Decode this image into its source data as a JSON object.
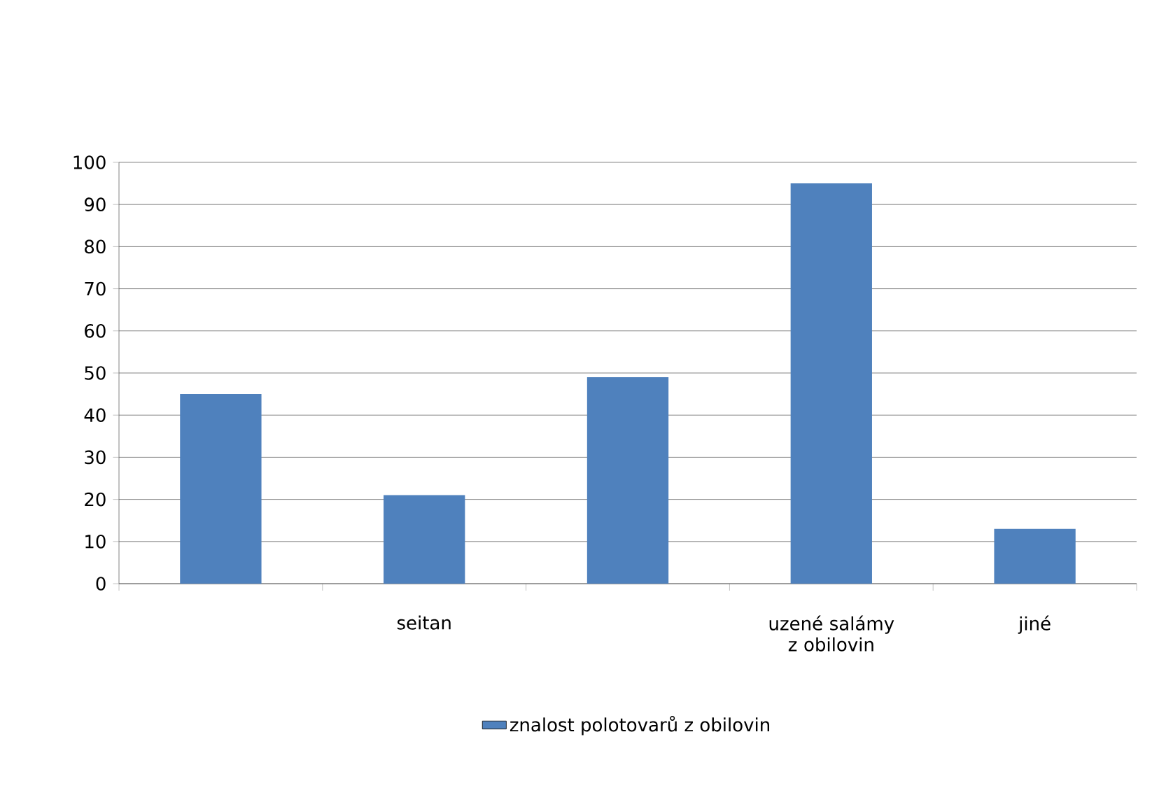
{
  "chart_data": {
    "type": "bar",
    "categories": [
      null,
      "seitan",
      null,
      "uzené salámy z obilovin",
      "jiné"
    ],
    "series": [
      {
        "name": "znalost polotovarů z obilovin",
        "color": "#4f81bd",
        "values": [
          45,
          21,
          49,
          95,
          13
        ]
      }
    ],
    "ylim": [
      0,
      100
    ],
    "yticks": [
      0,
      10,
      20,
      30,
      40,
      50,
      60,
      70,
      80,
      90,
      100
    ],
    "grid": "y",
    "legend": "bottom"
  }
}
